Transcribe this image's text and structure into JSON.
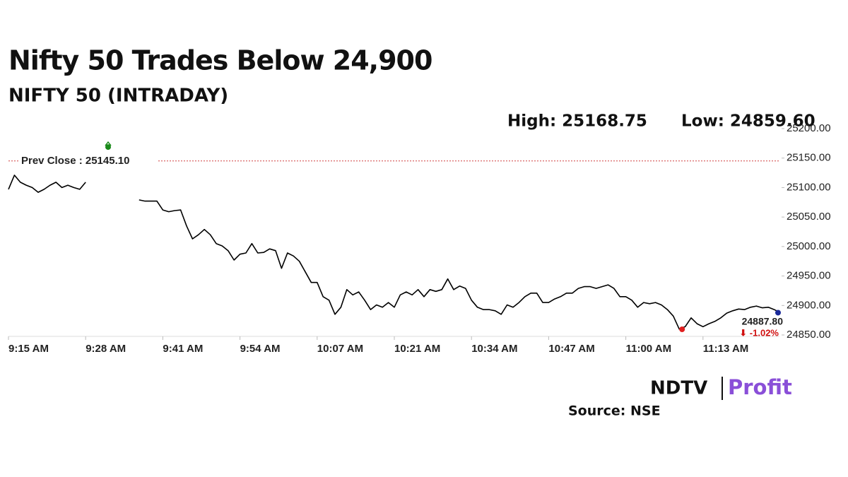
{
  "chart_data": {
    "type": "line",
    "title": "Nifty 50 Trades Below 24,900",
    "subtitle": "NIFTY 50 (INTRADAY)",
    "high_label": "High: 25168.75",
    "high": 25168.75,
    "low_label": "Low: 24859.60",
    "low": 24859.6,
    "prev_close_label": "Prev Close : 25145.10",
    "prev_close": 25145.1,
    "last": {
      "value": 24887.8,
      "label": "24887.80"
    },
    "change_label": "⬇ -1.02%",
    "source": "Source: NSE",
    "brand": [
      "NDTV",
      "Profit"
    ],
    "categories": [
      "9:15 AM",
      null,
      null,
      null,
      null,
      null,
      null,
      null,
      null,
      null,
      null,
      null,
      null,
      "9:28 AM",
      null,
      null,
      null,
      null,
      null,
      null,
      null,
      null,
      null,
      null,
      null,
      null,
      "9:41 AM",
      null,
      null,
      null,
      null,
      null,
      null,
      null,
      null,
      null,
      null,
      null,
      null,
      "9:54 AM",
      null,
      null,
      null,
      null,
      null,
      null,
      null,
      null,
      null,
      null,
      null,
      null,
      "10:07 AM",
      null,
      null,
      null,
      null,
      null,
      null,
      null,
      null,
      null,
      null,
      null,
      null,
      "10:21 AM",
      null,
      null,
      null,
      null,
      null,
      null,
      null,
      null,
      null,
      null,
      null,
      null,
      "10:34 AM",
      null,
      null,
      null,
      null,
      null,
      null,
      null,
      null,
      null,
      null,
      null,
      null,
      "10:47 AM",
      null,
      null,
      null,
      null,
      null,
      null,
      null,
      null,
      null,
      null,
      null,
      null,
      "11:00 AM",
      null,
      null,
      null,
      null,
      null,
      null,
      null,
      null,
      null,
      null,
      null,
      null,
      "11:13 AM",
      null,
      null,
      null,
      null,
      null,
      null,
      null,
      null,
      null,
      null,
      null,
      null,
      null
    ],
    "series": [
      {
        "name": "NIFTY 50",
        "color": "#000000",
        "values": [
          25097,
          25121,
          25109,
          25104,
          25100,
          25092,
          25097,
          25104,
          25109,
          25100,
          25104,
          25100,
          25097,
          25109,
          null,
          null,
          null,
          null,
          null,
          null,
          null,
          null,
          25079,
          25077,
          25077,
          25077,
          25062,
          25059,
          25061,
          25062,
          25035,
          25013,
          25020,
          25029,
          25020,
          25005,
          25001,
          24993,
          24977,
          24987,
          24989,
          25005,
          24989,
          24990,
          24996,
          24993,
          24963,
          24989,
          24984,
          24975,
          24957,
          24939,
          24939,
          24915,
          24909,
          24885,
          24897,
          24927,
          24918,
          24923,
          24909,
          24893,
          24901,
          24897,
          24905,
          24897,
          24918,
          24923,
          24918,
          24927,
          24915,
          24927,
          24924,
          24927,
          24945,
          24927,
          24933,
          24929,
          24909,
          24897,
          24893,
          24893,
          24891,
          24885,
          24901,
          24897,
          24905,
          24915,
          24921,
          24921,
          24905,
          24905,
          24911,
          24915,
          24921,
          24921,
          24929,
          24932,
          24932,
          24929,
          24932,
          24935,
          24929,
          24915,
          24915,
          24909,
          24897,
          24905,
          24903,
          24905,
          24901,
          24893,
          24882,
          24860,
          24864,
          24879,
          24869,
          24864,
          24869,
          24873,
          24879,
          24887,
          24891,
          24894,
          24893,
          24897,
          24899,
          24896,
          24897,
          24893,
          24887.8
        ]
      }
    ],
    "ylim": [
      24850,
      25200
    ],
    "yticks": [
      {
        "value": 24850,
        "label": "24850.00"
      },
      {
        "value": 24900,
        "label": "24900.00"
      },
      {
        "value": 24950,
        "label": "24950.00"
      },
      {
        "value": 25000,
        "label": "25000.00"
      },
      {
        "value": 25050,
        "label": "25050.00"
      },
      {
        "value": 25100,
        "label": "25100.00"
      },
      {
        "value": 25150,
        "label": "25150.00"
      },
      {
        "value": 25200,
        "label": "25200.00"
      }
    ]
  }
}
